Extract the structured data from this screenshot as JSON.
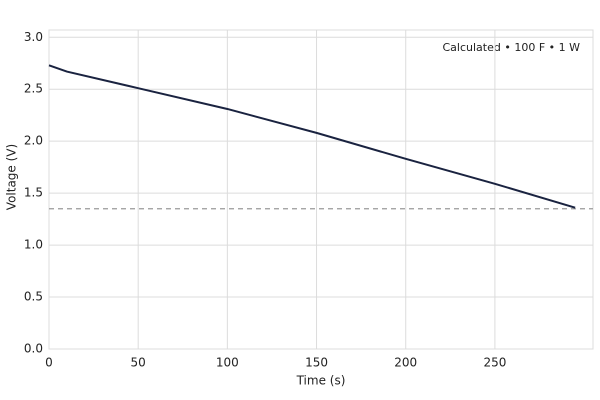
{
  "chart_data": {
    "type": "line",
    "annotation": "Calculated • 100 F • 1 W",
    "x_label": "Time (s)",
    "y_label": "Voltage (V)",
    "x": [
      0,
      10,
      50,
      100,
      150,
      200,
      250,
      295
    ],
    "series": [
      {
        "color": "#1a2340",
        "values": [
          2.73,
          2.67,
          2.51,
          2.31,
          2.08,
          1.83,
          1.59,
          1.36
        ]
      }
    ],
    "threshold": 1.35,
    "threshold_color": "#999999",
    "xlim": [
      0,
      305
    ],
    "ylim": [
      0,
      3.07
    ],
    "xticks": [
      0,
      50,
      100,
      150,
      200,
      250
    ],
    "yticks": [
      {
        "value": 0,
        "label": "0.0"
      },
      0.5,
      {
        "value": 1,
        "label": "1.0"
      },
      1.5,
      {
        "value": 2,
        "label": "2.0"
      },
      2.5,
      {
        "value": 3,
        "label": "3.0"
      }
    ],
    "grid": true
  }
}
